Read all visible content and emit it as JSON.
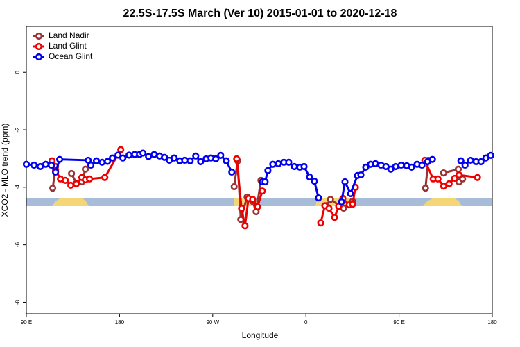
{
  "chart_data": {
    "type": "line",
    "title": "22.5S-17.5S March (Ver 10)   2015-01-01 to 2020-12-18",
    "x_label": "Longitude",
    "y_label": "XCO2 - MLO trend (ppm)",
    "xlim": [
      90,
      540
    ],
    "ylim": [
      -8.4,
      1.6
    ],
    "xticks": [
      {
        "value": 90,
        "label": "90 E"
      },
      180,
      {
        "value": 270,
        "label": "90 W"
      },
      {
        "value": 360,
        "label": "0"
      },
      {
        "value": 450,
        "label": "90 E"
      },
      {
        "value": 540,
        "label": "180"
      }
    ],
    "yticks": [
      0,
      -2,
      -4,
      -6,
      -8
    ],
    "legend": "top-left",
    "series": [
      {
        "name": "Land Nadir",
        "color": "#993333",
        "x": [
          115.5,
          118.2,
          120,
          133.6,
          138.3,
          143.6,
          147,
          148,
          290.7,
          294.1,
          297.1,
          303.2,
          308.6,
          311.9,
          316.6,
          330,
          379.7,
          383.7,
          396.4,
          405.1,
          420,
          475.5,
          478.2,
          485,
          493,
          507.2,
          507.9,
          511.3
        ],
        "values": [
          -4.03,
          -3.28,
          null,
          -3.52,
          -3.86,
          -3.81,
          -3.37,
          null,
          -3.98,
          -3.08,
          -5.12,
          -4.34,
          -4.49,
          -4.85,
          -3.76,
          null,
          -4.64,
          -4.42,
          -4.73,
          -4.49,
          null,
          -4.03,
          -3.06,
          null,
          -3.5,
          -3.37,
          -3.81,
          -3.71
        ]
      },
      {
        "name": "Land Glint",
        "color": "#ee0000",
        "x": [
          114.8,
          118.2,
          122.9,
          127.6,
          132.9,
          138.3,
          143.6,
          147,
          151,
          165.8,
          181.2,
          250,
          293.1,
          297.8,
          301.2,
          304.5,
          308.6,
          313.3,
          317.9,
          340,
          374.3,
          378.3,
          382.3,
          387.7,
          391.7,
          395.7,
          401.8,
          405.1,
          407.8,
          450,
          474.8,
          482.9,
          487.6,
          493,
          498.3,
          503.7,
          507.9,
          525.7
        ],
        "values": [
          -3.08,
          -3.4,
          -3.71,
          -3.76,
          -3.93,
          -3.88,
          -3.66,
          -3.74,
          -3.71,
          -3.66,
          -2.69,
          null,
          -3.01,
          -4.73,
          -5.34,
          -4.39,
          -4.42,
          -4.68,
          -4.13,
          null,
          -5.24,
          -4.64,
          -4.73,
          -5.05,
          -4.66,
          -4.39,
          -4.61,
          -4.59,
          -4.0,
          null,
          -3.06,
          -3.71,
          -3.71,
          -3.96,
          -3.88,
          -3.69,
          -3.57,
          -3.66
        ]
      },
      {
        "name": "Ocean Glint",
        "color": "#0000ee",
        "x": [
          90,
          97.4,
          103.4,
          108.8,
          114.1,
          118.2,
          122.2,
          149.7,
          152.3,
          157.7,
          163.1,
          168.4,
          173.1,
          178.5,
          183.2,
          189.2,
          194.6,
          199.3,
          202.6,
          208,
          213.4,
          218.7,
          223.4,
          228.1,
          232.8,
          238.2,
          242.9,
          248.2,
          253.6,
          258.3,
          263.6,
          268.3,
          273,
          277.7,
          283.1,
          288.4,
          300,
          317.9,
          320.6,
          323.3,
          328,
          333.4,
          338.7,
          343.4,
          348.8,
          354.1,
          358.2,
          363.5,
          368.2,
          372.2,
          385,
          394.4,
          397.7,
          403.1,
          409.8,
          413.1,
          417.8,
          422.5,
          427.2,
          432.6,
          437.3,
          442,
          446.7,
          452,
          457.4,
          462.1,
          467.4,
          472.1,
          477.5,
          482.2,
          495,
          509.7,
          513.7,
          519.1,
          524.4,
          529.1,
          533.8,
          538.5
        ],
        "values": [
          -3.2,
          -3.23,
          -3.28,
          -3.2,
          -3.23,
          -3.47,
          -3.03,
          -3.06,
          -3.23,
          -3.08,
          -3.13,
          -3.1,
          -2.98,
          -2.88,
          -2.98,
          -2.88,
          -2.86,
          -2.86,
          -2.81,
          -2.93,
          -2.86,
          -2.91,
          -2.96,
          -3.06,
          -2.98,
          -3.08,
          -3.06,
          -3.08,
          -2.91,
          -3.11,
          -3.01,
          -2.98,
          -3.01,
          -2.89,
          -3.08,
          -3.47,
          null,
          -3.81,
          -3.81,
          -3.42,
          -3.2,
          -3.18,
          -3.13,
          -3.13,
          -3.28,
          -3.3,
          -3.28,
          -3.64,
          -3.79,
          -4.37,
          null,
          -4.51,
          -3.81,
          -4.22,
          -3.59,
          -3.57,
          -3.3,
          -3.2,
          -3.18,
          -3.23,
          -3.28,
          -3.37,
          -3.28,
          -3.23,
          -3.25,
          -3.3,
          -3.2,
          -3.23,
          -3.11,
          -3.03,
          null,
          -3.08,
          -3.23,
          -3.06,
          -3.11,
          -3.11,
          -2.98,
          -2.89
        ]
      }
    ]
  }
}
